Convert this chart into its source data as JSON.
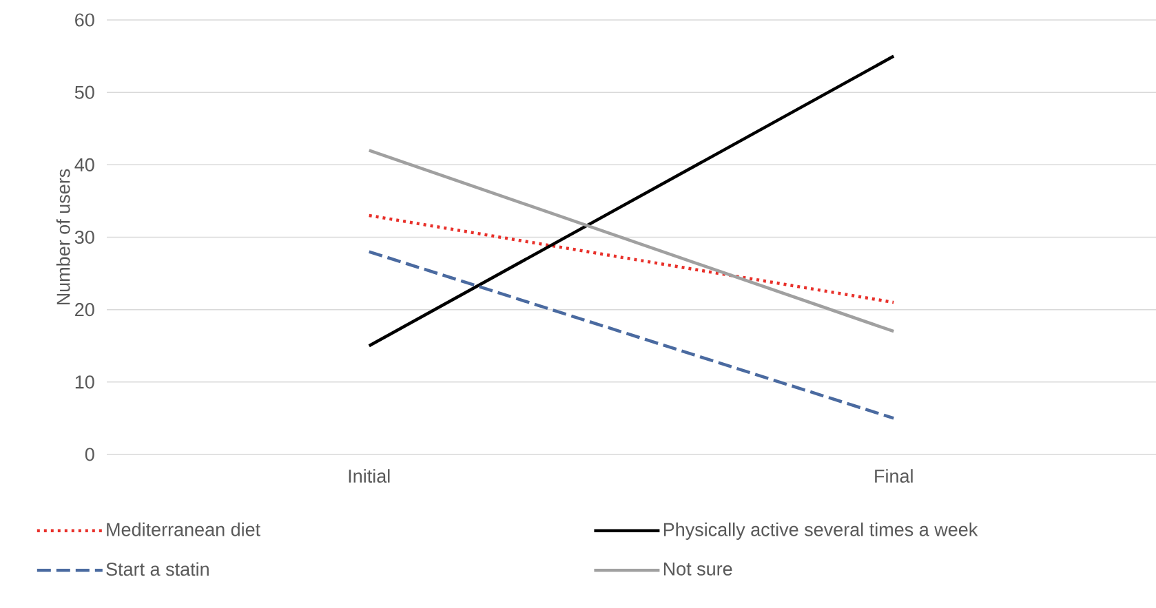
{
  "chart_data": {
    "type": "line",
    "ylabel": "Number of users",
    "categories": [
      "Initial",
      "Final"
    ],
    "series": [
      {
        "name": "Mediterranean diet",
        "color": "#e8302a",
        "line_style": "dotted",
        "values": [
          33,
          21
        ]
      },
      {
        "name": "Physically active several times a week",
        "color": "#000000",
        "line_style": "solid",
        "values": [
          15,
          55
        ]
      },
      {
        "name": "Start a statin",
        "color": "#4a6aa0",
        "line_style": "dashed",
        "values": [
          28,
          5
        ]
      },
      {
        "name": "Not sure",
        "color": "#a0a0a0",
        "line_style": "solid",
        "values": [
          42,
          17
        ]
      }
    ],
    "ylim": [
      0,
      60
    ],
    "yticks": [
      0,
      10,
      20,
      30,
      40,
      50,
      60
    ],
    "grid": "y",
    "legend": "bottom",
    "marker": "none"
  }
}
